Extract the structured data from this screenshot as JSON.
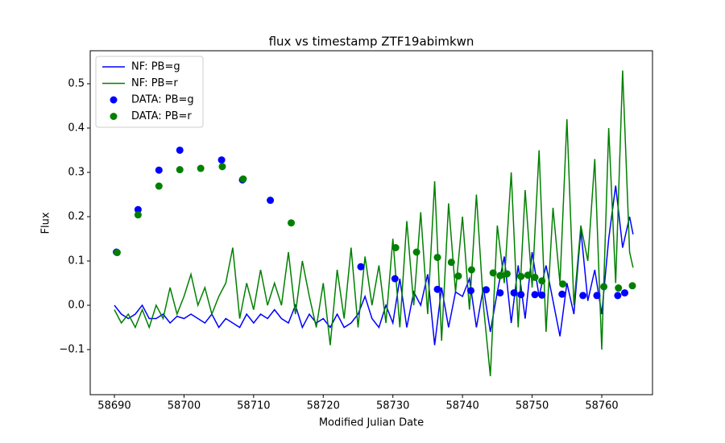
{
  "chart_data": {
    "type": "line",
    "title": "flux vs timestamp ZTF19abimkwn",
    "x_label": "Modified Julian Date",
    "y_label": "Flux",
    "xlim": [
      58686.53,
      58767.29
    ],
    "ylim": [
      -0.2018,
      0.5745
    ],
    "xticks": [
      58690,
      58700,
      58710,
      58720,
      58730,
      58740,
      58750,
      58760
    ],
    "yticks": [
      {
        "value": -0.1,
        "label": "−0.1"
      },
      {
        "value": 0,
        "label": "0.0"
      },
      0.1,
      0.2,
      0.3,
      0.4,
      0.5
    ],
    "legend": "upper left",
    "series": [
      {
        "name": "NF: PB=g",
        "color": "#0000ff",
        "type": "line",
        "x": [
          58690,
          58691,
          58692,
          58693,
          58694,
          58695,
          58696,
          58697,
          58698,
          58699,
          58700,
          58701,
          58702,
          58703,
          58704,
          58705,
          58706,
          58707,
          58708,
          58709,
          58710,
          58711,
          58712,
          58713,
          58714,
          58715,
          58716,
          58717,
          58718,
          58719,
          58720,
          58721,
          58722,
          58723,
          58724,
          58725,
          58726,
          58727,
          58728,
          58729,
          58730,
          58731,
          58732,
          58733,
          58734,
          58735,
          58736,
          58737,
          58738,
          58739,
          58740,
          58741,
          58742,
          58743,
          58744,
          58745,
          58746,
          58747,
          58748,
          58749,
          58750,
          58751,
          58752,
          58753,
          58754,
          58755,
          58756,
          58757,
          58758,
          58759,
          58760,
          58761,
          58762,
          58763,
          58764,
          58764.5
        ],
        "values": [
          0.0,
          -0.02,
          -0.03,
          -0.02,
          0.0,
          -0.03,
          -0.03,
          -0.02,
          -0.04,
          -0.025,
          -0.03,
          -0.02,
          -0.03,
          -0.04,
          -0.02,
          -0.05,
          -0.03,
          -0.04,
          -0.05,
          -0.02,
          -0.04,
          -0.02,
          -0.03,
          -0.01,
          -0.03,
          -0.04,
          0.0,
          -0.05,
          -0.02,
          -0.04,
          -0.03,
          -0.05,
          -0.02,
          -0.05,
          -0.04,
          -0.02,
          0.02,
          -0.03,
          -0.05,
          0.0,
          -0.04,
          0.06,
          -0.05,
          0.03,
          0.0,
          0.07,
          -0.09,
          0.04,
          -0.05,
          0.03,
          0.02,
          0.06,
          -0.05,
          0.04,
          -0.06,
          0.03,
          0.11,
          -0.04,
          0.09,
          -0.03,
          0.12,
          0.02,
          0.09,
          0.01,
          -0.07,
          0.05,
          -0.02,
          0.17,
          0.01,
          0.08,
          -0.02,
          0.15,
          0.27,
          0.13,
          0.2,
          0.16
        ]
      },
      {
        "name": "NF: PB=r",
        "color": "#008000",
        "type": "line",
        "x": [
          58690,
          58691,
          58692,
          58693,
          58694,
          58695,
          58696,
          58697,
          58698,
          58699,
          58700,
          58701,
          58702,
          58703,
          58704,
          58705,
          58706,
          58707,
          58708,
          58709,
          58710,
          58711,
          58712,
          58713,
          58714,
          58715,
          58716,
          58717,
          58718,
          58719,
          58720,
          58721,
          58722,
          58723,
          58724,
          58725,
          58726,
          58727,
          58728,
          58729,
          58730,
          58731,
          58732,
          58733,
          58734,
          58735,
          58736,
          58737,
          58738,
          58739,
          58740,
          58741,
          58742,
          58743,
          58744,
          58745,
          58746,
          58747,
          58748,
          58749,
          58750,
          58751,
          58752,
          58753,
          58754,
          58755,
          58756,
          58757,
          58758,
          58759,
          58760,
          58761,
          58762,
          58763,
          58764,
          58764.5
        ],
        "values": [
          -0.01,
          -0.04,
          -0.02,
          -0.05,
          -0.01,
          -0.05,
          0.0,
          -0.03,
          0.04,
          -0.02,
          0.02,
          0.07,
          0.0,
          0.04,
          -0.02,
          0.02,
          0.05,
          0.13,
          -0.03,
          0.05,
          -0.01,
          0.08,
          0.0,
          0.05,
          0.0,
          0.12,
          -0.02,
          0.1,
          0.02,
          -0.05,
          0.05,
          -0.09,
          0.08,
          -0.03,
          0.13,
          -0.05,
          0.11,
          0.0,
          0.09,
          -0.04,
          0.15,
          -0.05,
          0.19,
          0.0,
          0.21,
          -0.02,
          0.28,
          -0.08,
          0.23,
          0.03,
          0.2,
          -0.01,
          0.25,
          0.0,
          -0.16,
          0.18,
          0.05,
          0.3,
          -0.05,
          0.26,
          0.04,
          0.35,
          -0.06,
          0.22,
          0.05,
          0.42,
          0.0,
          0.18,
          0.1,
          0.33,
          -0.1,
          0.4,
          0.05,
          0.53,
          0.12,
          0.085
        ]
      },
      {
        "name": "DATA: PB=g",
        "color": "#0000ff",
        "type": "scatter",
        "x": [
          58690.3,
          58693.4,
          58696.4,
          58699.4,
          58705.4,
          58708.4,
          58712.4,
          58725.4,
          58730.3,
          58736.4,
          58741.2,
          58743.4,
          58745.4,
          58747.4,
          58748.4,
          58750.4,
          58751.4,
          58754.3,
          58757.3,
          58759.3,
          58762.3,
          58763.3
        ],
        "values": [
          0.12,
          0.216,
          0.305,
          0.35,
          0.328,
          0.283,
          0.237,
          0.087,
          0.06,
          0.036,
          0.033,
          0.035,
          0.028,
          0.028,
          0.024,
          0.024,
          0.023,
          0.025,
          0.022,
          0.022,
          0.022,
          0.028
        ]
      },
      {
        "name": "DATA: PB=r",
        "color": "#008000",
        "type": "scatter",
        "x": [
          58690.4,
          58693.4,
          58696.4,
          58699.4,
          58702.4,
          58705.5,
          58708.5,
          58715.4,
          58730.4,
          58733.4,
          58736.4,
          58738.4,
          58739.4,
          58741.3,
          58744.4,
          58745.4,
          58746.4,
          58748.4,
          58749.4,
          58750.4,
          58751.4,
          58754.4,
          58760.3,
          58762.4,
          58764.4
        ],
        "values": [
          0.119,
          0.204,
          0.269,
          0.306,
          0.309,
          0.313,
          0.285,
          0.186,
          0.13,
          0.12,
          0.108,
          0.097,
          0.066,
          0.08,
          0.073,
          0.067,
          0.071,
          0.065,
          0.068,
          0.063,
          0.055,
          0.048,
          0.042,
          0.039,
          0.044
        ]
      }
    ]
  }
}
